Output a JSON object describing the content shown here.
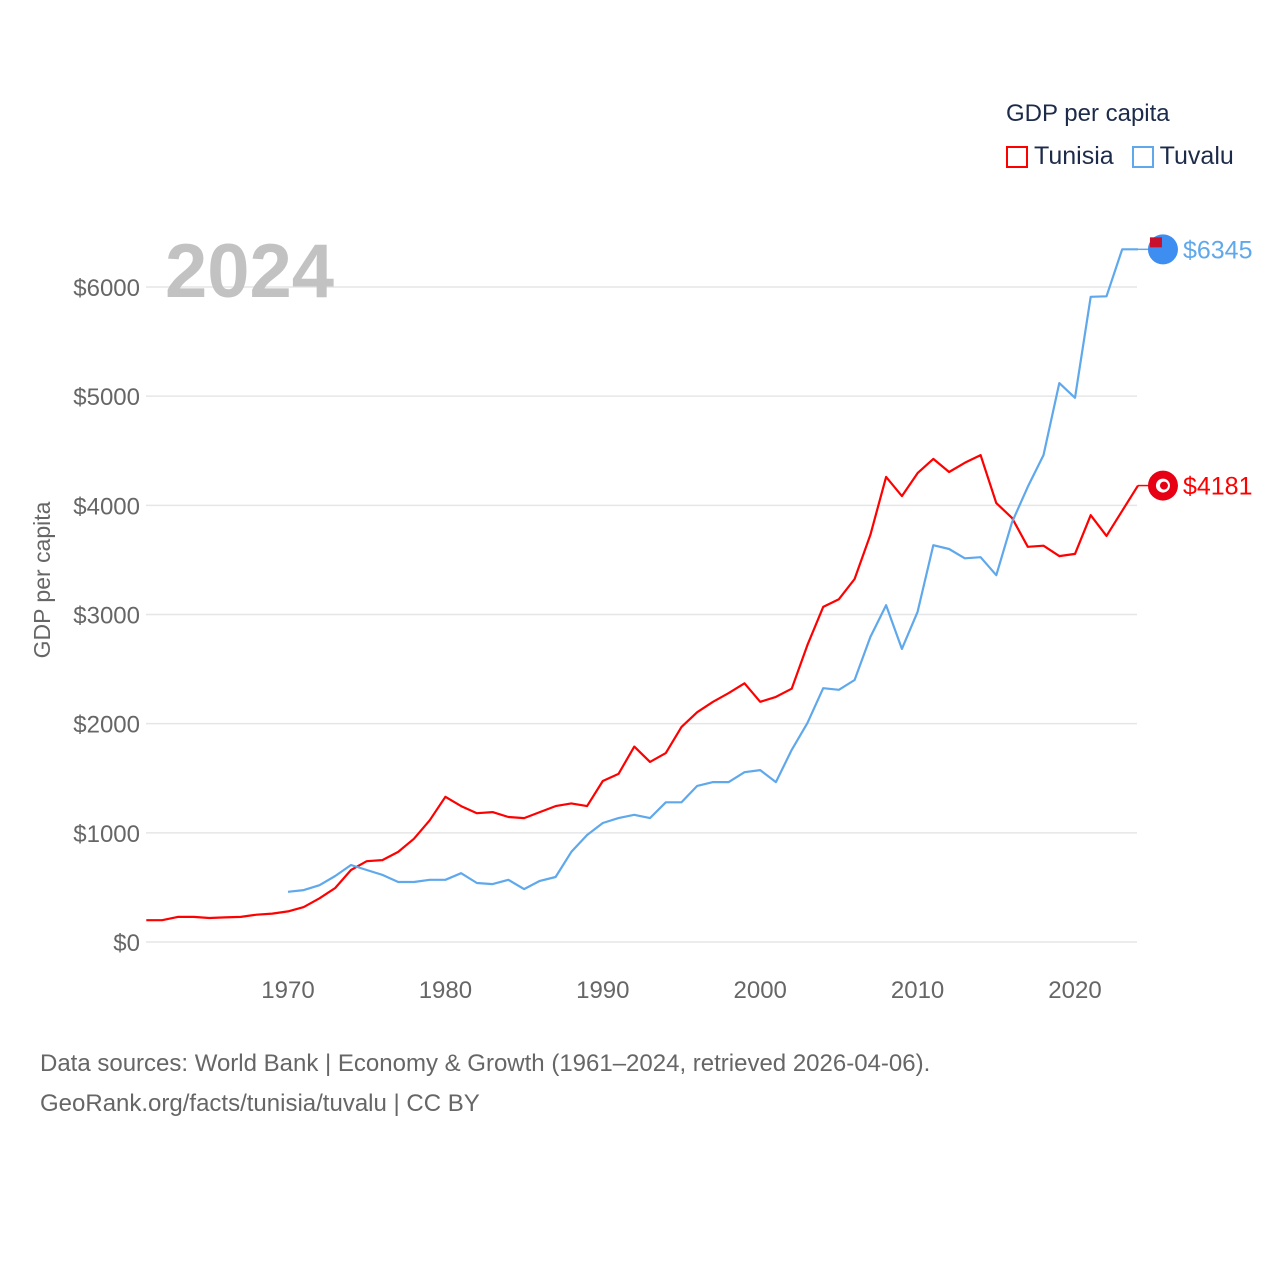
{
  "chart_data": {
    "type": "line",
    "title": "GDP per capita",
    "ylabel": "GDP per capita",
    "xlabel": "",
    "ylim": [
      0,
      6000
    ],
    "xlim": [
      1961,
      2024
    ],
    "grid": true,
    "legend_placement": "top-right",
    "current_year": "2024",
    "y_ticks": [
      0,
      1000,
      2000,
      3000,
      4000,
      5000,
      6000
    ],
    "y_tick_labels": [
      "$0",
      "$1000",
      "$2000",
      "$3000",
      "$4000",
      "$5000",
      "$6000"
    ],
    "x_ticks": [
      1970,
      1980,
      1990,
      2000,
      2010,
      2020
    ],
    "x_tick_labels": [
      "1970",
      "1980",
      "1990",
      "2000",
      "2010",
      "2020"
    ],
    "series": [
      {
        "name": "Tunisia",
        "color": "#ff0000",
        "start_year": 1961,
        "end_label": "$4181",
        "values": [
          200,
          200,
          230,
          230,
          220,
          225,
          230,
          250,
          260,
          280,
          320,
          400,
          495,
          660,
          740,
          750,
          825,
          945,
          1115,
          1330,
          1245,
          1180,
          1190,
          1145,
          1135,
          1190,
          1245,
          1270,
          1245,
          1475,
          1540,
          1790,
          1650,
          1730,
          1970,
          2105,
          2200,
          2280,
          2370,
          2200,
          2245,
          2320,
          2720,
          3070,
          3140,
          3325,
          3730,
          4260,
          4085,
          4295,
          4425,
          4305,
          4390,
          4460,
          4020,
          3885,
          3620,
          3630,
          3535,
          3555,
          3910,
          3720,
          3950,
          4181
        ]
      },
      {
        "name": "Tuvalu",
        "color": "#5fa8ec",
        "start_year": 1970,
        "end_label": "$6345",
        "values": [
          460,
          475,
          520,
          605,
          705,
          660,
          615,
          550,
          550,
          570,
          570,
          630,
          540,
          530,
          570,
          485,
          560,
          595,
          825,
          980,
          1090,
          1135,
          1165,
          1135,
          1280,
          1280,
          1430,
          1465,
          1465,
          1555,
          1575,
          1465,
          1760,
          2005,
          2325,
          2310,
          2400,
          2795,
          3085,
          2685,
          3025,
          3635,
          3600,
          3515,
          3525,
          3360,
          3845,
          4170,
          4460,
          5120,
          4985,
          5910,
          5915,
          6345,
          6345
        ]
      }
    ]
  },
  "footer": {
    "line1": "Data sources: World Bank | Economy & Growth (1961–2024, retrieved 2026-04-06).",
    "line2": "GeoRank.org/facts/tunisia/tuvalu | CC BY"
  }
}
